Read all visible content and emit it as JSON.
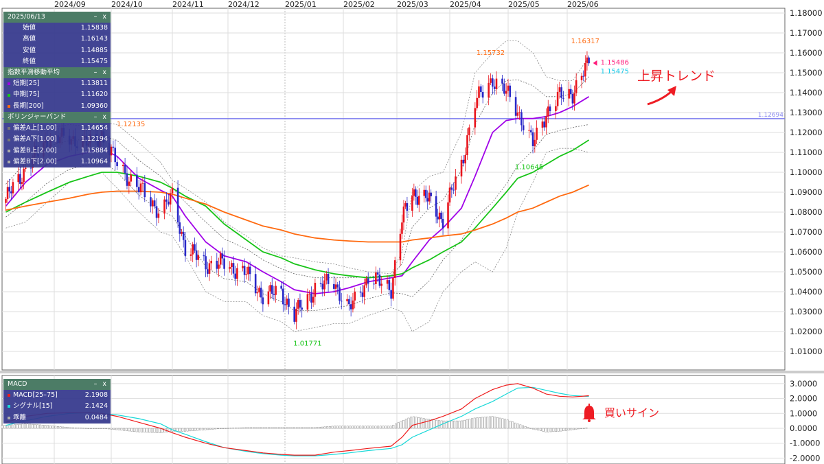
{
  "chart_data": {
    "type": "candlestick",
    "x_tick_labels": [
      "2024/09",
      "2024/10",
      "2024/11",
      "2024/12",
      "2025/01",
      "2025/02",
      "2025/03",
      "2025/04",
      "2025/05",
      "2025/06"
    ],
    "price_axis": {
      "ylim": [
        1.005,
        1.185
      ],
      "ticks": [
        "1.18000",
        "1.17000",
        "1.16000",
        "1.15000",
        "1.14000",
        "1.13000",
        "1.12000",
        "1.11000",
        "1.10000",
        "1.09000",
        "1.08000",
        "1.07000",
        "1.06000",
        "1.05000",
        "1.04000",
        "1.03000",
        "1.02000",
        "1.01000"
      ]
    },
    "dates": [
      "2024-08-05",
      "2024-08-16",
      "2024-08-28",
      "2024-09-09",
      "2024-09-19",
      "2024-09-26",
      "2024-10-04",
      "2024-10-15",
      "2024-10-26",
      "2024-11-01",
      "2024-11-08",
      "2024-11-19",
      "2024-11-29",
      "2024-12-11",
      "2024-12-20",
      "2024-12-30",
      "2025-01-06",
      "2025-01-17",
      "2025-01-27",
      "2025-02-04",
      "2025-02-14",
      "2025-02-26",
      "2025-03-04",
      "2025-03-10",
      "2025-03-20",
      "2025-03-28",
      "2025-04-07",
      "2025-04-14",
      "2025-04-23",
      "2025-04-30",
      "2025-05-06",
      "2025-05-14",
      "2025-05-21",
      "2025-05-28",
      "2025-06-04",
      "2025-06-13"
    ],
    "close": [
      1.0866,
      1.102,
      1.116,
      1.1175,
      1.114,
      1.119,
      1.104,
      1.092,
      1.08,
      1.088,
      1.062,
      1.054,
      1.054,
      1.049,
      1.038,
      1.04,
      1.028,
      1.042,
      1.045,
      1.031,
      1.047,
      1.042,
      1.076,
      1.09,
      1.086,
      1.076,
      1.104,
      1.135,
      1.147,
      1.14,
      1.131,
      1.114,
      1.13,
      1.138,
      1.14,
      1.15475
    ],
    "series": [
      {
        "name": "短期[25]",
        "color": "#a000e8",
        "values": [
          1.083,
          1.095,
          1.104,
          1.108,
          1.11,
          1.112,
          1.108,
          1.097,
          1.091,
          1.088,
          1.078,
          1.065,
          1.058,
          1.055,
          1.05,
          1.045,
          1.041,
          1.039,
          1.04,
          1.042,
          1.045,
          1.047,
          1.048,
          1.055,
          1.066,
          1.072,
          1.082,
          1.098,
          1.12,
          1.126,
          1.127,
          1.127,
          1.128,
          1.13,
          1.133,
          1.138
        ]
      },
      {
        "name": "中期[75]",
        "color": "#18c418",
        "values": [
          1.08,
          1.085,
          1.09,
          1.095,
          1.098,
          1.1,
          1.1,
          1.098,
          1.095,
          1.092,
          1.088,
          1.083,
          1.074,
          1.066,
          1.06,
          1.057,
          1.054,
          1.051,
          1.049,
          1.048,
          1.047,
          1.048,
          1.049,
          1.052,
          1.056,
          1.06,
          1.065,
          1.072,
          1.082,
          1.09,
          1.097,
          1.1,
          1.104,
          1.108,
          1.111,
          1.1162
        ]
      },
      {
        "name": "長期[200]",
        "color": "#ff6a10",
        "values": [
          1.081,
          1.083,
          1.085,
          1.087,
          1.089,
          1.09,
          1.0905,
          1.0905,
          1.09,
          1.089,
          1.087,
          1.084,
          1.08,
          1.076,
          1.073,
          1.071,
          1.069,
          1.067,
          1.066,
          1.0655,
          1.065,
          1.065,
          1.065,
          1.066,
          1.067,
          1.068,
          1.069,
          1.071,
          1.074,
          1.077,
          1.08,
          1.082,
          1.085,
          1.088,
          1.09,
          1.0936
        ]
      },
      {
        "name": "偏差B上[2.00]",
        "color": "#999999",
        "values": [
          1.105,
          1.115,
          1.122,
          1.124,
          1.123,
          1.125,
          1.124,
          1.115,
          1.105,
          1.096,
          1.092,
          1.085,
          1.075,
          1.068,
          1.062,
          1.058,
          1.057,
          1.055,
          1.054,
          1.052,
          1.05,
          1.049,
          1.06,
          1.09,
          1.098,
          1.1,
          1.12,
          1.15,
          1.16,
          1.166,
          1.166,
          1.16,
          1.148,
          1.146,
          1.146,
          1.158
        ]
      },
      {
        "name": "偏差B下[2.00]",
        "color": "#999999",
        "values": [
          1.072,
          1.075,
          1.085,
          1.095,
          1.098,
          1.1,
          1.092,
          1.08,
          1.07,
          1.068,
          1.058,
          1.04,
          1.035,
          1.035,
          1.028,
          1.025,
          1.02,
          1.022,
          1.024,
          1.024,
          1.028,
          1.032,
          1.03,
          1.02,
          1.025,
          1.04,
          1.05,
          1.055,
          1.05,
          1.062,
          1.08,
          1.095,
          1.11,
          1.112,
          1.112,
          1.11
        ]
      }
    ],
    "horizontal_line": {
      "value": 1.12694,
      "label": "1.12694",
      "color": "#7a7aee"
    },
    "annotations": [
      {
        "text": "1.12135",
        "value": 1.12135,
        "date": "2024-09-26",
        "color": "#ff6a10"
      },
      {
        "text": "1.15732",
        "value": 1.15732,
        "date": "2025-04-22",
        "color": "#ff6a10"
      },
      {
        "text": "1.16317",
        "value": 1.16317,
        "date": "2025-06-11",
        "color": "#ff6a10"
      },
      {
        "text": "1.01771",
        "value": 1.01771,
        "date": "2025-01-13",
        "color": "#18c418"
      },
      {
        "text": "1.10645",
        "value": 1.10645,
        "date": "2025-05-12",
        "color": "#18c418"
      }
    ],
    "last_price": {
      "bid": "1.15486",
      "bid_color": "#ff1a7a",
      "close": "1.15475",
      "close_color": "#10c8e8"
    },
    "macd": {
      "ylim": [
        -2.3,
        3.3
      ],
      "ticks": [
        "3.0000",
        "2.0000",
        "1.0000",
        "0.0000",
        "-1.0000",
        "-2.0000"
      ],
      "macd": {
        "name": "MACD[25-75]",
        "color": "#ee1c1c",
        "values": [
          0.4,
          0.8,
          1.0,
          1.05,
          1.05,
          1.0,
          0.8,
          0.4,
          0.0,
          -0.3,
          -0.6,
          -1.0,
          -1.3,
          -1.5,
          -1.65,
          -1.75,
          -1.8,
          -1.8,
          -1.6,
          -1.5,
          -1.35,
          -1.2,
          -0.6,
          0.2,
          0.5,
          0.8,
          1.3,
          2.0,
          2.6,
          2.9,
          3.0,
          2.7,
          2.3,
          2.15,
          2.1,
          2.19
        ]
      },
      "signal": {
        "name": "シグナル[15]",
        "color": "#18d8d8",
        "values": [
          0.2,
          0.5,
          0.8,
          1.0,
          1.05,
          1.0,
          0.9,
          0.65,
          0.3,
          -0.1,
          -0.4,
          -0.9,
          -1.3,
          -1.55,
          -1.7,
          -1.8,
          -1.85,
          -1.85,
          -1.75,
          -1.65,
          -1.5,
          -1.35,
          -1.1,
          -0.6,
          -0.1,
          0.3,
          0.8,
          1.3,
          1.8,
          2.3,
          2.7,
          2.75,
          2.55,
          2.35,
          2.2,
          2.14
        ]
      }
    },
    "up_color": "#e8141c",
    "down_color": "#2828c8"
  },
  "overlay_text": {
    "trend": "上昇トレンド",
    "buy_sign": "買いサイン",
    "color": "#ee1c24"
  },
  "panels": {
    "ohlc": {
      "title": "2025/06/13",
      "min": "–",
      "close": "x",
      "rows": [
        {
          "label": "始値",
          "value": "1.15838"
        },
        {
          "label": "高値",
          "value": "1.16143"
        },
        {
          "label": "安値",
          "value": "1.14885"
        },
        {
          "label": "終値",
          "value": "1.15475"
        }
      ]
    },
    "ema": {
      "title": "指数平滑移動平均",
      "min": "–",
      "close": "x",
      "rows": [
        {
          "label": "短期[25]",
          "value": "1.13811",
          "color": "#a000e8"
        },
        {
          "label": "中期[75]",
          "value": "1.11620",
          "color": "#18c418"
        },
        {
          "label": "長期[200]",
          "value": "1.09360",
          "color": "#ff6a10"
        }
      ]
    },
    "bb": {
      "title": "ボリンジャーバンド",
      "min": "–",
      "close": "x",
      "rows": [
        {
          "label": "偏差A上[1.00]",
          "value": "1.14654",
          "color": "#777777"
        },
        {
          "label": "偏差A下[1.00]",
          "value": "1.12194",
          "color": "#777777"
        },
        {
          "label": "偏差B上[2.00]",
          "value": "1.15884",
          "color": "#aaaaaa"
        },
        {
          "label": "偏差B下[2.00]",
          "value": "1.10964",
          "color": "#aaaaaa"
        }
      ]
    },
    "macd": {
      "title": "MACD",
      "min": "–",
      "close": "x",
      "rows": [
        {
          "label": "MACD[25–75]",
          "value": "2.1908",
          "color": "#ee1c1c"
        },
        {
          "label": "シグナル[15]",
          "value": "2.1424",
          "color": "#18d8d8"
        },
        {
          "label": "乖離",
          "value": "0.0484",
          "color": "#aaaaaa"
        }
      ]
    }
  }
}
